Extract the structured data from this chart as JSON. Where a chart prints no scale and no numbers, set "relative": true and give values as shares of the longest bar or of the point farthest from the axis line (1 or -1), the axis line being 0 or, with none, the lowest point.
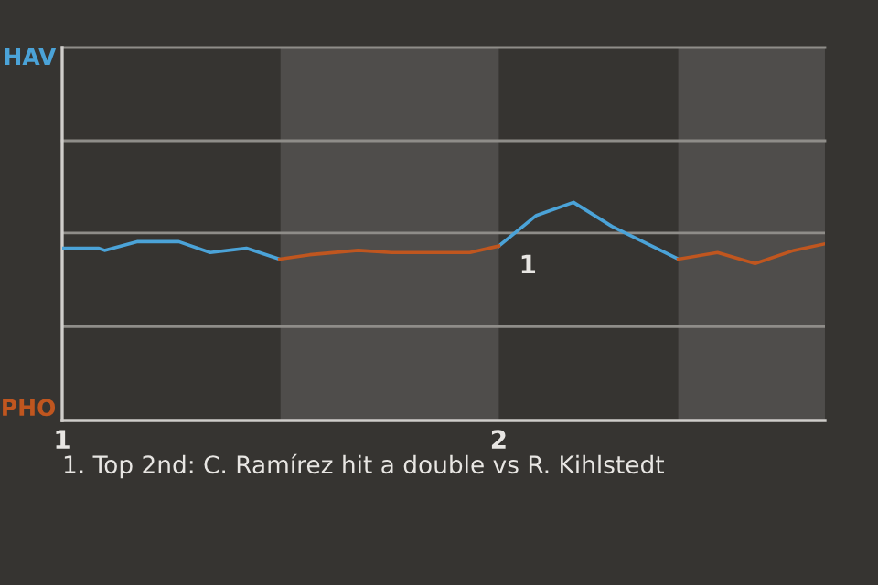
{
  "chart_data": {
    "type": "line",
    "relative": true,
    "series": [
      {
        "name": "HAV",
        "color": "#4ba3d8",
        "x": [
          1.003,
          1.083,
          1.097,
          1.173,
          1.267,
          1.339,
          1.422,
          1.498,
          null,
          2.0,
          2.086,
          2.171,
          2.259,
          2.411
        ],
        "values": [
          0.79,
          0.79,
          0.78,
          0.82,
          0.82,
          0.77,
          0.79,
          0.74,
          null,
          0.8,
          0.94,
          1,
          0.89,
          0.74
        ]
      },
      {
        "name": "PHO",
        "color": "#c0561f",
        "x": [
          1.498,
          1.567,
          1.678,
          1.754,
          1.934,
          2.0,
          null,
          2.411,
          2.501,
          2.587,
          2.676,
          2.747
        ],
        "values": [
          0.74,
          0.76,
          0.78,
          0.77,
          0.77,
          0.8,
          null,
          0.74,
          0.77,
          0.72,
          0.78,
          0.81
        ]
      }
    ],
    "xlim": [
      1,
      2.747
    ],
    "xticks": [
      1,
      2
    ],
    "bands": [
      {
        "axis": "x",
        "from": 1.5,
        "to": 2.0,
        "color": "#4f4d4b"
      },
      {
        "axis": "x",
        "from": 2.411,
        "to": 2.747,
        "color": "#4f4d4b"
      }
    ],
    "ref_lines": [
      {
        "axis": "y",
        "value": 0.43,
        "color": "#8f8d89"
      },
      {
        "axis": "y",
        "value": 0.86,
        "color": "#8f8d89"
      }
    ],
    "line_style": "solid",
    "marker": "none",
    "annotations": [
      {
        "text": "1",
        "x": 2.0,
        "y": 0.8
      },
      "1. Top 2nd: C. Ramírez hit a double vs R. Kihlstedt"
    ]
  }
}
